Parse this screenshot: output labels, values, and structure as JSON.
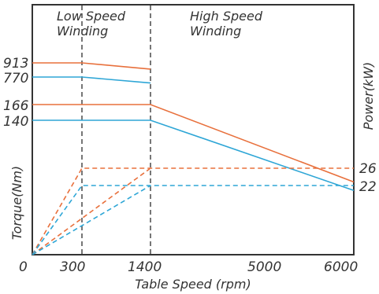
{
  "chart_data": {
    "type": "line",
    "xlabel": "Table Speed (rpm)",
    "ylabel_left": "Torque(Nm)",
    "ylabel_right": "Power(kW)",
    "x_ticks": [
      "0",
      "300",
      "1400",
      "5000",
      "6000"
    ],
    "x_tick_values": [
      0,
      300,
      1400,
      5000,
      6000
    ],
    "left_ticks": [
      "913",
      "770",
      "166",
      "140"
    ],
    "right_ticks": [
      "26",
      "22"
    ],
    "region_labels": [
      {
        "line1": "Low Speed",
        "line2": "Winding"
      },
      {
        "line1": "High Speed",
        "line2": "Winding"
      }
    ],
    "colors": {
      "orange": "#e8703c",
      "blue": "#2ea6d6",
      "axis": "#333333",
      "divider": "#555555"
    },
    "divider_x": [
      300,
      1400
    ],
    "series": [
      {
        "axis": "left-low",
        "style": "solid",
        "color": "orange",
        "points": [
          [
            0,
            913
          ],
          [
            300,
            913
          ],
          [
            1400,
            850
          ]
        ]
      },
      {
        "axis": "left-low",
        "style": "solid",
        "color": "blue",
        "points": [
          [
            0,
            770
          ],
          [
            300,
            770
          ],
          [
            1400,
            710
          ]
        ]
      },
      {
        "axis": "left-high",
        "style": "solid",
        "color": "orange",
        "points": [
          [
            0,
            166
          ],
          [
            1400,
            166
          ],
          [
            6000,
            38
          ]
        ]
      },
      {
        "axis": "left-high",
        "style": "solid",
        "color": "blue",
        "points": [
          [
            0,
            140
          ],
          [
            1400,
            140
          ],
          [
            6000,
            24
          ]
        ]
      },
      {
        "axis": "right",
        "style": "dashed",
        "color": "orange",
        "points": [
          [
            0,
            0
          ],
          [
            300,
            26
          ],
          [
            6000,
            26
          ]
        ]
      },
      {
        "axis": "right",
        "style": "dashed",
        "color": "blue",
        "points": [
          [
            0,
            0
          ],
          [
            300,
            22
          ],
          [
            6000,
            22
          ]
        ]
      },
      {
        "axis": "right",
        "style": "dashed",
        "color": "orange",
        "points": [
          [
            0,
            0
          ],
          [
            1400,
            26
          ]
        ]
      },
      {
        "axis": "right",
        "style": "dashed",
        "color": "blue",
        "points": [
          [
            0,
            0
          ],
          [
            1400,
            22
          ]
        ]
      }
    ]
  }
}
